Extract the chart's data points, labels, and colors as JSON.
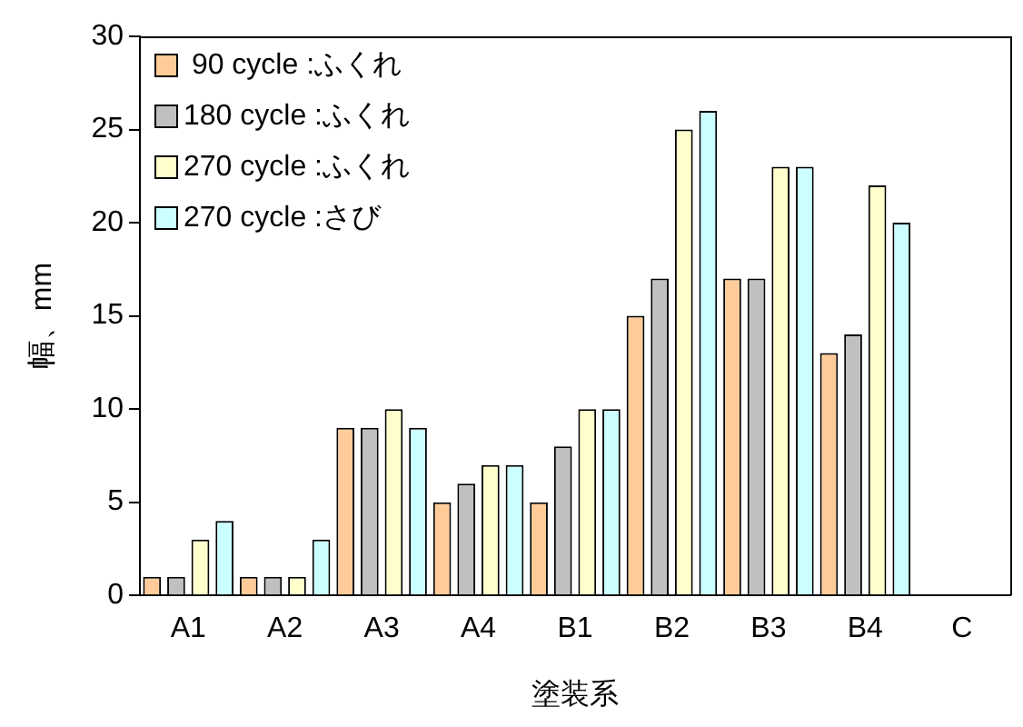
{
  "chart_data": {
    "type": "bar",
    "xlabel": "塗装系",
    "ylabel": "幅、mm",
    "categories": [
      "A1",
      "A2",
      "A3",
      "A4",
      "B1",
      "B2",
      "B3",
      "B4",
      "C"
    ],
    "series": [
      {
        "name": " 90 cycle :ふくれ",
        "color": "#ffcc99",
        "values": [
          1,
          1,
          9,
          5,
          5,
          15,
          17,
          13,
          null
        ]
      },
      {
        "name": "180 cycle :ふくれ",
        "color": "#c0c0c0",
        "values": [
          1,
          1,
          9,
          6,
          8,
          17,
          17,
          14,
          null
        ]
      },
      {
        "name": "270 cycle :ふくれ",
        "color": "#ffffcc",
        "values": [
          3,
          1,
          10,
          7,
          10,
          25,
          23,
          22,
          null
        ]
      },
      {
        "name": "270 cycle :さび",
        "color": "#ccffff",
        "values": [
          4,
          3,
          9,
          7,
          10,
          26,
          23,
          20,
          null
        ]
      }
    ],
    "ylim": [
      0,
      30
    ],
    "yticks": [
      0,
      5,
      10,
      15,
      20,
      25,
      30
    ],
    "grid": false,
    "legend": "top left"
  }
}
